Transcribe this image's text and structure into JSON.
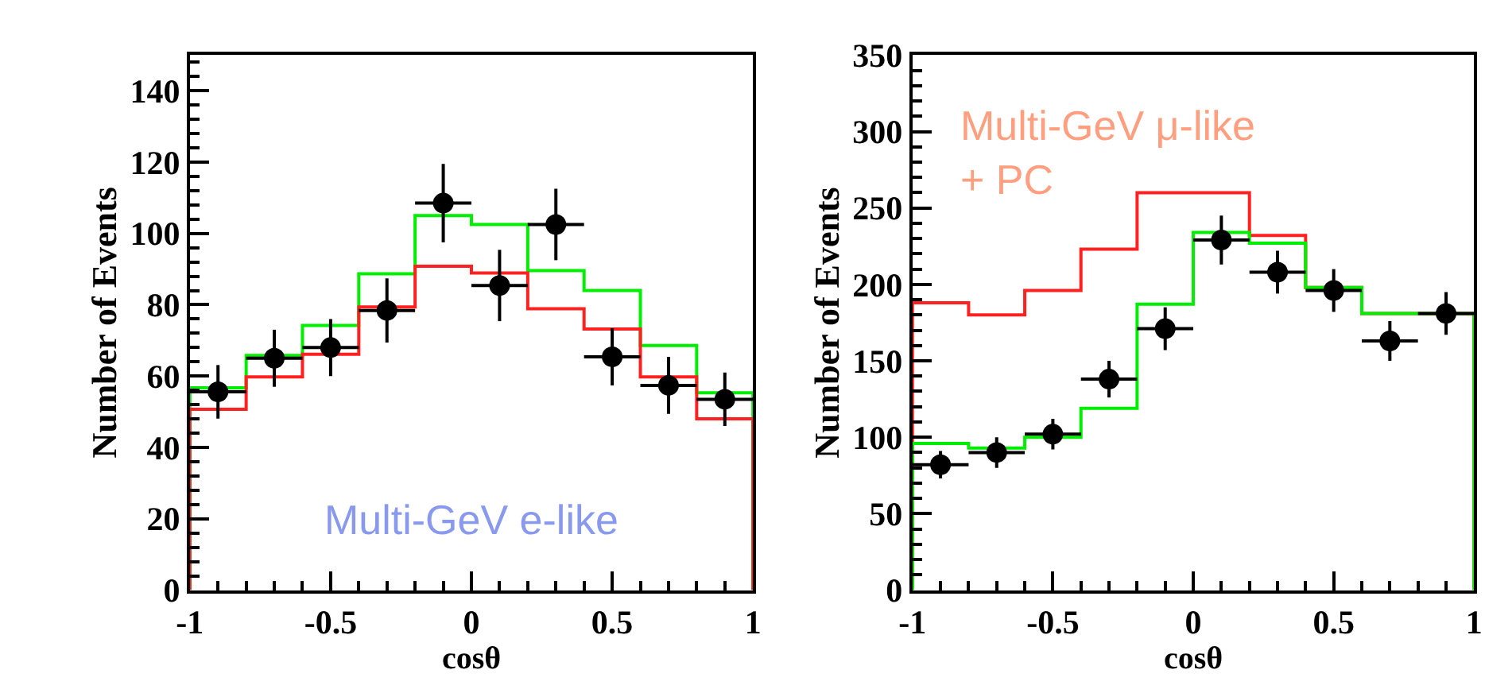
{
  "chart_data": [
    {
      "type": "scatter",
      "xlabel": "cosθ",
      "ylabel": "Number of Events",
      "annotations": [
        "Multi-GeV e-like"
      ],
      "xlim": [
        -1,
        1
      ],
      "xticks": [
        -1,
        -0.5,
        0,
        0.5,
        1
      ],
      "ylim": [
        0,
        150
      ],
      "yticks": [
        0,
        20,
        40,
        60,
        80,
        100,
        120,
        140
      ],
      "x": [
        -0.9,
        -0.7,
        -0.5,
        -0.3,
        -0.1,
        0.1,
        0.3,
        0.5,
        0.7,
        0.9
      ],
      "series": [
        {
          "type": "histogram",
          "color": "#00ee00",
          "bins": [
            -1,
            -0.8,
            -0.6,
            -0.4,
            -0.2,
            0,
            0.2,
            0.4,
            0.6,
            0.8,
            1
          ],
          "values": [
            56.7,
            65.8,
            74.2,
            88.7,
            105,
            102.5,
            89.6,
            84,
            68.6,
            55.3
          ]
        },
        {
          "type": "histogram",
          "color": "#ff2020",
          "bins": [
            -1,
            -0.8,
            -0.6,
            -0.4,
            -0.2,
            0,
            0.2,
            0.4,
            0.6,
            0.8,
            1
          ],
          "values": [
            50.7,
            59.8,
            66.1,
            79.4,
            90.8,
            88.9,
            78.9,
            73.2,
            59.8,
            48
          ]
        },
        {
          "color": "#000000",
          "marker": "circle",
          "values": [
            55.6,
            65,
            68,
            78.4,
            108.5,
            85.4,
            102.5,
            65.4,
            57.4,
            53.5
          ],
          "errors": [
            7.5,
            8,
            8,
            9,
            11,
            10,
            10,
            8,
            8,
            7.5
          ],
          "xerrors": [
            0.1,
            0.1,
            0.1,
            0.1,
            0.1,
            0.1,
            0.1,
            0.1,
            0.1,
            0.1
          ]
        }
      ]
    },
    {
      "type": "scatter",
      "xlabel": "cosθ",
      "ylabel": "Number of Events",
      "annotations": [
        "Multi-GeV μ-like\n+ PC"
      ],
      "xlim": [
        -1,
        1
      ],
      "xticks": [
        -1,
        -0.5,
        0,
        0.5,
        1
      ],
      "ylim": [
        0,
        350
      ],
      "yticks": [
        0,
        50,
        100,
        150,
        200,
        250,
        300,
        350
      ],
      "x": [
        -0.9,
        -0.7,
        -0.5,
        -0.3,
        -0.1,
        0.1,
        0.3,
        0.5,
        0.7,
        0.9
      ],
      "series": [
        {
          "type": "histogram",
          "color": "#ff2020",
          "bins": [
            -1,
            -0.8,
            -0.6,
            -0.4,
            -0.2,
            0,
            0.2,
            0.4,
            0.6,
            0.8,
            1
          ],
          "values": [
            188,
            180,
            196,
            223,
            260,
            260,
            232,
            198,
            181,
            181
          ]
        },
        {
          "type": "histogram",
          "color": "#00ee00",
          "bins": [
            -1,
            -0.8,
            -0.6,
            -0.4,
            -0.2,
            0,
            0.2,
            0.4,
            0.6,
            0.8,
            1
          ],
          "values": [
            96,
            93,
            100,
            119,
            187,
            234,
            227,
            198,
            181,
            181
          ]
        },
        {
          "color": "#000000",
          "marker": "circle",
          "values": [
            82,
            90,
            102,
            138,
            171,
            229,
            208,
            196,
            163,
            181
          ],
          "errors": [
            9,
            10,
            10,
            12,
            14,
            16,
            14,
            14,
            13,
            14
          ],
          "xerrors": [
            0.1,
            0.1,
            0.1,
            0.1,
            0.1,
            0.1,
            0.1,
            0.1,
            0.1,
            0.1
          ]
        }
      ]
    }
  ]
}
